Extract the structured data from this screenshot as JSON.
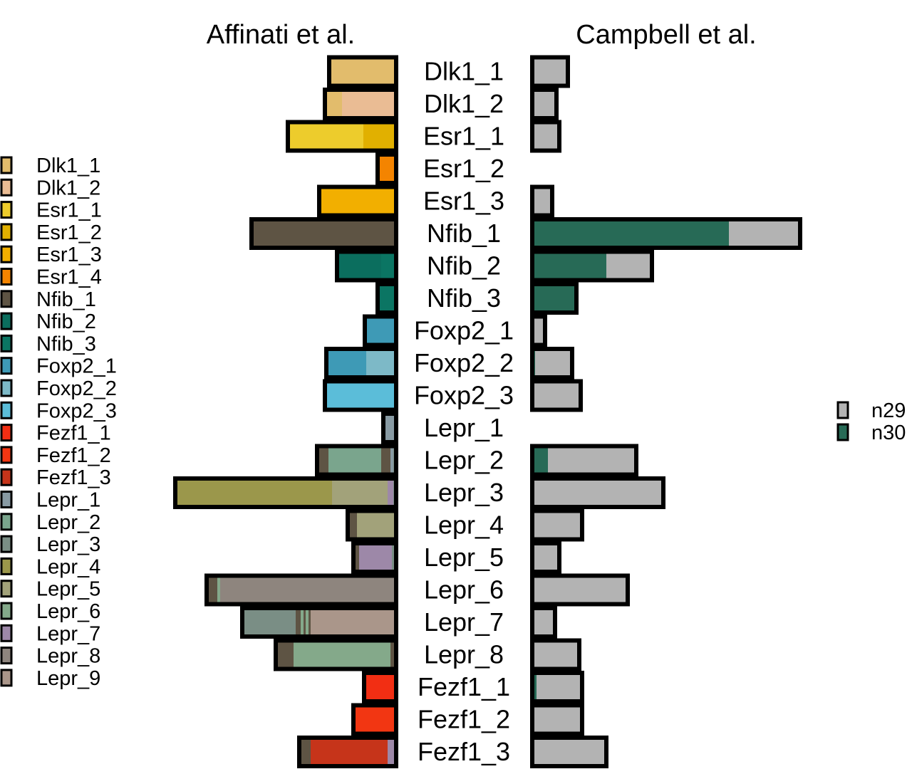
{
  "chart_data": {
    "type": "bar",
    "subtype": "stacked-horizontal-butterfly",
    "panels": {
      "left": {
        "title": "Affinati et al."
      },
      "right": {
        "title": "Campbell et al."
      }
    },
    "categories": [
      "Dlk1_1",
      "Dlk1_2",
      "Esr1_1",
      "Esr1_2",
      "Esr1_3",
      "Nfib_1",
      "Nfib_2",
      "Nfib_3",
      "Foxp2_1",
      "Foxp2_2",
      "Foxp2_3",
      "Lepr_1",
      "Lepr_2",
      "Lepr_3",
      "Lepr_4",
      "Lepr_5",
      "Lepr_6",
      "Lepr_7",
      "Lepr_8",
      "Fezf1_1",
      "Fezf1_2",
      "Fezf1_3"
    ],
    "left_legend": {
      "items": [
        {
          "label": "Dlk1_1",
          "color": "#E2BC6C"
        },
        {
          "label": "Dlk1_2",
          "color": "#EABC94"
        },
        {
          "label": "Esr1_1",
          "color": "#EDCC2C"
        },
        {
          "label": "Esr1_2",
          "color": "#E1B000"
        },
        {
          "label": "Esr1_3",
          "color": "#F2AF00"
        },
        {
          "label": "Esr1_4",
          "color": "#F48400"
        },
        {
          "label": "Nfib_1",
          "color": "#5E5444"
        },
        {
          "label": "Nfib_2",
          "color": "#0B6E5E"
        },
        {
          "label": "Nfib_3",
          "color": "#0B7563"
        },
        {
          "label": "Foxp2_1",
          "color": "#3E9AB6"
        },
        {
          "label": "Foxp2_2",
          "color": "#7DB9C7"
        },
        {
          "label": "Foxp2_3",
          "color": "#5BBDD9"
        },
        {
          "label": "Fezf1_1",
          "color": "#F22E13"
        },
        {
          "label": "Fezf1_2",
          "color": "#F23612"
        },
        {
          "label": "Fezf1_3",
          "color": "#C6341A"
        },
        {
          "label": "Lepr_1",
          "color": "#889AA3"
        },
        {
          "label": "Lepr_2",
          "color": "#7AA58D"
        },
        {
          "label": "Lepr_3",
          "color": "#7A8E85"
        },
        {
          "label": "Lepr_4",
          "color": "#9B974B"
        },
        {
          "label": "Lepr_5",
          "color": "#A2A27A"
        },
        {
          "label": "Lepr_6",
          "color": "#84A98A"
        },
        {
          "label": "Lepr_7",
          "color": "#9D88A8"
        },
        {
          "label": "Lepr_8",
          "color": "#8E857E"
        },
        {
          "label": "Lepr_9",
          "color": "#AA968A"
        }
      ]
    },
    "right_legend": {
      "items": [
        {
          "label": "n29",
          "color": "#B3B3B3"
        },
        {
          "label": "n30",
          "color": "#276A56"
        }
      ]
    },
    "left_series": [
      [
        {
          "cluster": "Dlk1_1",
          "value": 94
        }
      ],
      [
        {
          "cluster": "Dlk1_1",
          "value": 24
        },
        {
          "cluster": "Dlk1_2",
          "value": 76
        }
      ],
      [
        {
          "cluster": "Esr1_1",
          "value": 106
        },
        {
          "cluster": "Esr1_2",
          "value": 46
        }
      ],
      [
        {
          "cluster": "Esr1_4",
          "value": 26
        }
      ],
      [
        {
          "cluster": "Esr1_3",
          "value": 108
        }
      ],
      [
        {
          "cluster": "Nfib_1",
          "value": 200
        },
        {
          "cluster": "Fezf1_1",
          "value": 3
        }
      ],
      [
        {
          "cluster": "Nfib_2",
          "value": 62
        },
        {
          "cluster": "Nfib_3",
          "value": 21
        }
      ],
      [
        {
          "cluster": "Nfib_3",
          "value": 26
        }
      ],
      [
        {
          "cluster": "Foxp2_1",
          "value": 44
        }
      ],
      [
        {
          "cluster": "Foxp2_1",
          "value": 56
        },
        {
          "cluster": "Foxp2_2",
          "value": 42
        }
      ],
      [
        {
          "cluster": "Foxp2_3",
          "value": 100
        }
      ],
      [
        {
          "cluster": "Lepr_1",
          "value": 18
        }
      ],
      [
        {
          "cluster": "Nfib_1",
          "value": 16
        },
        {
          "cluster": "Lepr_2",
          "value": 74
        },
        {
          "cluster": "Nfib_1",
          "value": 13
        },
        {
          "cluster": "Lepr_1",
          "value": 4
        },
        {
          "cluster": "Lepr_3",
          "value": 4
        }
      ],
      [
        {
          "cluster": "Lepr_4",
          "value": 220
        },
        {
          "cluster": "Lepr_5",
          "value": 78
        },
        {
          "cluster": "Lepr_7",
          "value": 8
        },
        {
          "cluster": "Lepr_3",
          "value": 4
        }
      ],
      [
        {
          "cluster": "Nfib_1",
          "value": 13
        },
        {
          "cluster": "Lepr_5",
          "value": 55
        }
      ],
      [
        {
          "cluster": "Nfib_1",
          "value": 8
        },
        {
          "cluster": "Lepr_7",
          "value": 46
        },
        {
          "cluster": "Lepr_3",
          "value": 6
        }
      ],
      [
        {
          "cluster": "Nfib_1",
          "value": 15
        },
        {
          "cluster": "Lepr_6",
          "value": 4
        },
        {
          "cluster": "Lepr_8",
          "value": 247
        }
      ],
      [
        {
          "cluster": "Lepr_3",
          "value": 75
        },
        {
          "cluster": "Nfib_1",
          "value": 7
        },
        {
          "cluster": "Lepr_6",
          "value": 4
        },
        {
          "cluster": "Nfib_1",
          "value": 3
        },
        {
          "cluster": "Lepr_6",
          "value": 4
        },
        {
          "cluster": "Nfib_1",
          "value": 3
        },
        {
          "cluster": "Lepr_9",
          "value": 120
        }
      ],
      [
        {
          "cluster": "Nfib_1",
          "value": 25
        },
        {
          "cluster": "Lepr_6",
          "value": 136
        },
        {
          "cluster": "Nfib_1",
          "value": 8
        }
      ],
      [
        {
          "cluster": "Fezf1_1",
          "value": 45
        }
      ],
      [
        {
          "cluster": "Fezf1_2",
          "value": 60
        }
      ],
      [
        {
          "cluster": "Nfib_1",
          "value": 16
        },
        {
          "cluster": "Fezf1_3",
          "value": 108
        },
        {
          "cluster": "Lepr_7",
          "value": 12
        }
      ]
    ],
    "right_series": [
      [
        {
          "group": "n29",
          "value": 50
        }
      ],
      [
        {
          "group": "n29",
          "value": 34
        }
      ],
      [
        {
          "group": "n29",
          "value": 38
        }
      ],
      [],
      [
        {
          "group": "n29",
          "value": 28
        }
      ],
      [
        {
          "group": "n30",
          "value": 276
        },
        {
          "group": "n29",
          "value": 100
        }
      ],
      [
        {
          "group": "n30",
          "value": 104
        },
        {
          "group": "n29",
          "value": 64
        }
      ],
      [
        {
          "group": "n30",
          "value": 62
        }
      ],
      [
        {
          "group": "n29",
          "value": 18
        }
      ],
      [
        {
          "group": "n30",
          "value": 4
        },
        {
          "group": "n29",
          "value": 52
        }
      ],
      [
        {
          "group": "n29",
          "value": 68
        }
      ],
      [],
      [
        {
          "group": "n30",
          "value": 22
        },
        {
          "group": "n29",
          "value": 124
        }
      ],
      [
        {
          "group": "n29",
          "value": 184
        }
      ],
      [
        {
          "group": "n29",
          "value": 70
        }
      ],
      [
        {
          "group": "n29",
          "value": 38
        }
      ],
      [
        {
          "group": "n29",
          "value": 134
        }
      ],
      [
        {
          "group": "n29",
          "value": 32
        }
      ],
      [
        {
          "group": "n29",
          "value": 66
        }
      ],
      [
        {
          "group": "n30",
          "value": 6
        },
        {
          "group": "n29",
          "value": 64
        }
      ],
      [
        {
          "group": "n29",
          "value": 70
        }
      ],
      [
        {
          "group": "n29",
          "value": 104
        }
      ]
    ]
  }
}
